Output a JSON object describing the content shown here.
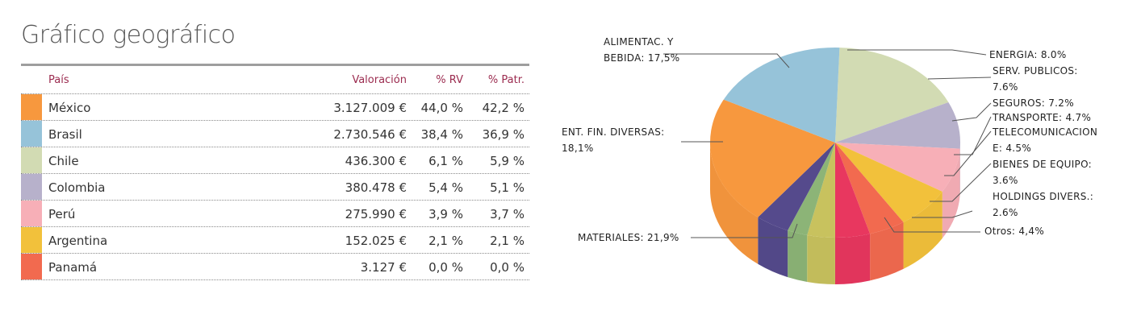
{
  "title": "Gráfico geográfico",
  "table": {
    "headers": {
      "country": "País",
      "valuation": "Valoración",
      "rv": "% RV",
      "patr": "% Patr."
    },
    "rows": [
      {
        "country": "México",
        "valuation": "3.127.009 €",
        "rv": "44,0 %",
        "patr": "42,2 %",
        "color": "#f7983e"
      },
      {
        "country": "Brasil",
        "valuation": "2.730.546 €",
        "rv": "38,4 %",
        "patr": "36,9 %",
        "color": "#96c3d9"
      },
      {
        "country": "Chile",
        "valuation": "436.300 €",
        "rv": "6,1 %",
        "patr": "5,9 %",
        "color": "#d2dbb3"
      },
      {
        "country": "Colombia",
        "valuation": "380.478 €",
        "rv": "5,4 %",
        "patr": "5,1 %",
        "color": "#b7b1cb"
      },
      {
        "country": "Perú",
        "valuation": "275.990 €",
        "rv": "3,9 %",
        "patr": "3,7 %",
        "color": "#f7afb7"
      },
      {
        "country": "Argentina",
        "valuation": "152.025 €",
        "rv": "2,1 %",
        "patr": "2,1 %",
        "color": "#f2c13b"
      },
      {
        "country": "Panamá",
        "valuation": "3.127 €",
        "rv": "0,0 %",
        "patr": "0,0 %",
        "color": "#f26a4f"
      }
    ]
  },
  "chart_data": {
    "type": "pie",
    "slices": [
      {
        "label": [
          "ALIMENTAC. Y",
          "BEBIDA: 17,5%"
        ],
        "value": 17.5,
        "color": "#d2dbb3"
      },
      {
        "label": [
          "ENERGIA: 8.0%"
        ],
        "value": 8.0,
        "color": "#b7b1cb"
      },
      {
        "label": [
          "SERV. PUBLICOS:",
          "7.6%"
        ],
        "value": 7.6,
        "color": "#f7afb7"
      },
      {
        "label": [
          "SEGUROS: 7.2%"
        ],
        "value": 7.2,
        "color": "#f2c13b"
      },
      {
        "label": [
          "TRANSPORTE: 4.7%"
        ],
        "value": 4.7,
        "color": "#f26a4f"
      },
      {
        "label": [
          "TELECOMUNICACION",
          "E: 4.5%"
        ],
        "value": 4.5,
        "color": "#e8375f"
      },
      {
        "label": [
          "BIENES DE EQUIPO:",
          "3.6%"
        ],
        "value": 3.6,
        "color": "#c8c25e"
      },
      {
        "label": [
          "HOLDINGS DIVERS.:",
          "2.6%"
        ],
        "value": 2.6,
        "color": "#8cb477"
      },
      {
        "label": [
          "Otros: 4,4%"
        ],
        "value": 4.4,
        "color": "#554a8c"
      },
      {
        "label": [
          "MATERIALES: 21,9%"
        ],
        "value": 21.9,
        "color": "#f7983e"
      },
      {
        "label": [
          "ENT. FIN. DIVERSAS:",
          "18,1%"
        ],
        "value": 18.1,
        "color": "#96c3d9"
      }
    ]
  }
}
